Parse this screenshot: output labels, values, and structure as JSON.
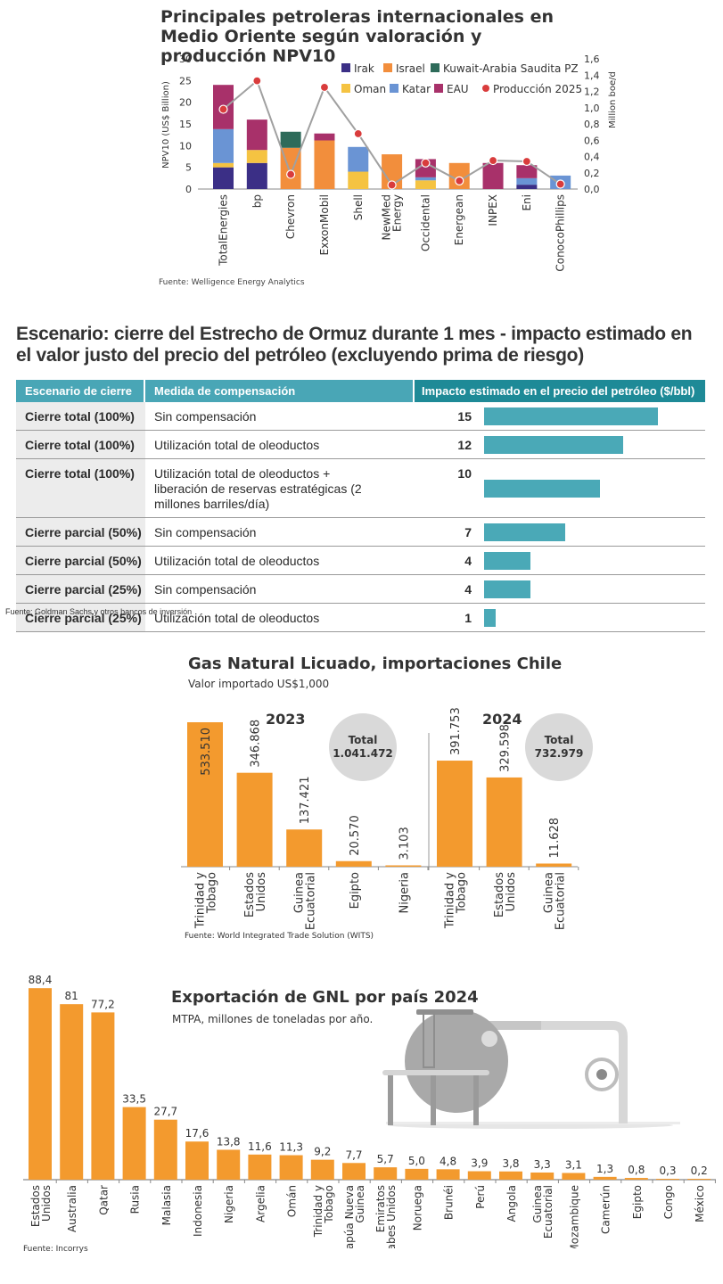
{
  "chart_data": [
    {
      "type": "bar",
      "stacked": true,
      "title": "Principales petroleras internacionales en Medio Oriente según valoración y producción NPV10",
      "ylabel": "NPV10 (US$ Billion)",
      "y2label": "Million boe/d",
      "ylim": [
        0,
        30
      ],
      "y2lim": [
        0,
        1.6
      ],
      "yticks": [
        "0",
        "5",
        "10",
        "15",
        "20",
        "25",
        "30"
      ],
      "y2ticks": [
        "0,0",
        "0,2",
        "0,4",
        "0,6",
        "0,8",
        "1,0",
        "1,2",
        "1,4",
        "1,6"
      ],
      "legend_position": "top-right",
      "categories": [
        "TotalEnergies",
        "bp",
        "Chevron",
        "ExxonMobil",
        "Shell",
        "NewMed Energy",
        "Occidental",
        "Energean",
        "INPEX",
        "Eni",
        "ConocoPhillips"
      ],
      "series": [
        {
          "name": "Irak",
          "color": "#3b2f86",
          "values": [
            5,
            6,
            0,
            0,
            0,
            0,
            0,
            0,
            0,
            1,
            0
          ]
        },
        {
          "name": "Oman",
          "color": "#f5c342",
          "values": [
            1,
            3,
            0,
            0,
            4,
            0,
            2,
            0,
            0,
            0,
            0
          ]
        },
        {
          "name": "Israel",
          "color": "#f28e3c",
          "values": [
            0,
            0,
            9.5,
            11.2,
            0,
            8,
            0,
            6,
            0,
            0,
            0
          ]
        },
        {
          "name": "Katar",
          "color": "#6a94d4",
          "values": [
            7.8,
            0,
            0,
            0,
            5.7,
            0,
            0.7,
            0,
            0,
            1.5,
            3.1
          ]
        },
        {
          "name": "Kuwait-Arabia Saudita PZ",
          "color": "#2e6b5a",
          "values": [
            0,
            0,
            3.7,
            0,
            0,
            0,
            0,
            0,
            0,
            0,
            0
          ]
        },
        {
          "name": "EAU",
          "color": "#a8316a",
          "values": [
            10.2,
            7,
            0,
            1.6,
            0,
            0,
            4.2,
            0,
            6,
            3,
            0
          ]
        }
      ],
      "line_series": {
        "name": "Producción 2025",
        "color": "#d93c3c",
        "axis": "right",
        "values": [
          0.98,
          1.33,
          0.18,
          1.25,
          0.68,
          0.05,
          0.32,
          0.1,
          0.35,
          0.34,
          0.06
        ]
      },
      "source": "Fuente: Welligence Energy Analytics"
    },
    {
      "type": "table",
      "title": "Escenario: cierre del Estrecho de Ormuz durante 1 mes - impacto estimado en el valor justo del precio del petróleo (excluyendo prima de riesgo)",
      "columns": [
        "Escenario de cierre",
        "Medida de compensación",
        "Impacto estimado en el precio del petróleo ($/bbl)"
      ],
      "max_value": 15,
      "rows": [
        {
          "scenario": "Cierre total (100%)",
          "measure": "Sin compensación",
          "impact": 15
        },
        {
          "scenario": "Cierre total (100%)",
          "measure": "Utilización total de oleoductos",
          "impact": 12
        },
        {
          "scenario": "Cierre total (100%)",
          "measure": "Utilización total de oleoductos + liberación de reservas estratégicas (2 millones barriles/día)",
          "impact": 10
        },
        {
          "scenario": "Cierre parcial (50%)",
          "measure": "Sin compensación",
          "impact": 7
        },
        {
          "scenario": "Cierre parcial (50%)",
          "measure": "Utilización total de oleoductos",
          "impact": 4
        },
        {
          "scenario": "Cierre parcial (25%)",
          "measure": "Sin compensación",
          "impact": 4
        },
        {
          "scenario": "Cierre parcial (25%)",
          "measure": "Utilización total de oleoductos",
          "impact": 1
        }
      ],
      "source": "Fuente: Goldman Sachs y otros bancos de inversión"
    },
    {
      "type": "bar",
      "title": "Gas Natural Licuado, importaciones Chile",
      "subtitle": "Valor importado US$1,000",
      "panels": [
        {
          "year": "2023",
          "total_label": "Total",
          "total": "1.041.472",
          "categories": [
            "Trinidad y Tobago",
            "Estados Unidos",
            "Guinea Ecuatorial",
            "Egipto",
            "Nigeria"
          ],
          "values": [
            533510,
            346868,
            137421,
            20570,
            3103
          ],
          "labels": [
            "533.510",
            "346.868",
            "137.421",
            "20.570",
            "3.103"
          ]
        },
        {
          "year": "2024",
          "total_label": "Total",
          "total": "732.979",
          "categories": [
            "Trinidad y Tobago",
            "Estados Unidos",
            "Guinea Ecuatorial"
          ],
          "values": [
            391753,
            329598,
            11628
          ],
          "labels": [
            "391.753",
            "329.598",
            "11.628"
          ]
        }
      ],
      "color": "#f39a2e",
      "source": "Fuente: World Integrated Trade Solution (WITS)"
    },
    {
      "type": "bar",
      "title": "Exportación de GNL por país 2024",
      "subtitle": "MTPA, millones de toneladas por año.",
      "color": "#f39a2e",
      "categories": [
        "Estados Unidos",
        "Australia",
        "Qatar",
        "Rusia",
        "Malasia",
        "Indonesia",
        "Nigeria",
        "Argelia",
        "Omán",
        "Trinidad y Tobago",
        "Papúa Nueva Guinea",
        "Emiratos Árabes Unidos",
        "Noruega",
        "Brunéi",
        "Perú",
        "Angola",
        "Guinea Ecuatorial",
        "Mozambique",
        "Camerún",
        "Egipto",
        "Congo",
        "México"
      ],
      "values": [
        88.4,
        81,
        77.2,
        33.5,
        27.7,
        17.6,
        13.8,
        11.6,
        11.3,
        9.2,
        7.7,
        5.7,
        5.0,
        4.8,
        3.9,
        3.8,
        3.3,
        3.1,
        1.3,
        0.8,
        0.3,
        0.2
      ],
      "labels": [
        "88,4",
        "81",
        "77,2",
        "33,5",
        "27,7",
        "17,6",
        "13,8",
        "11,6",
        "11,3",
        "9,2",
        "7,7",
        "5,7",
        "5,0",
        "4,8",
        "3,9",
        "3,8",
        "3,3",
        "3,1",
        "1,3",
        "0,8",
        "0,3",
        "0,2"
      ],
      "source": "Fuente: Incorrys"
    }
  ]
}
